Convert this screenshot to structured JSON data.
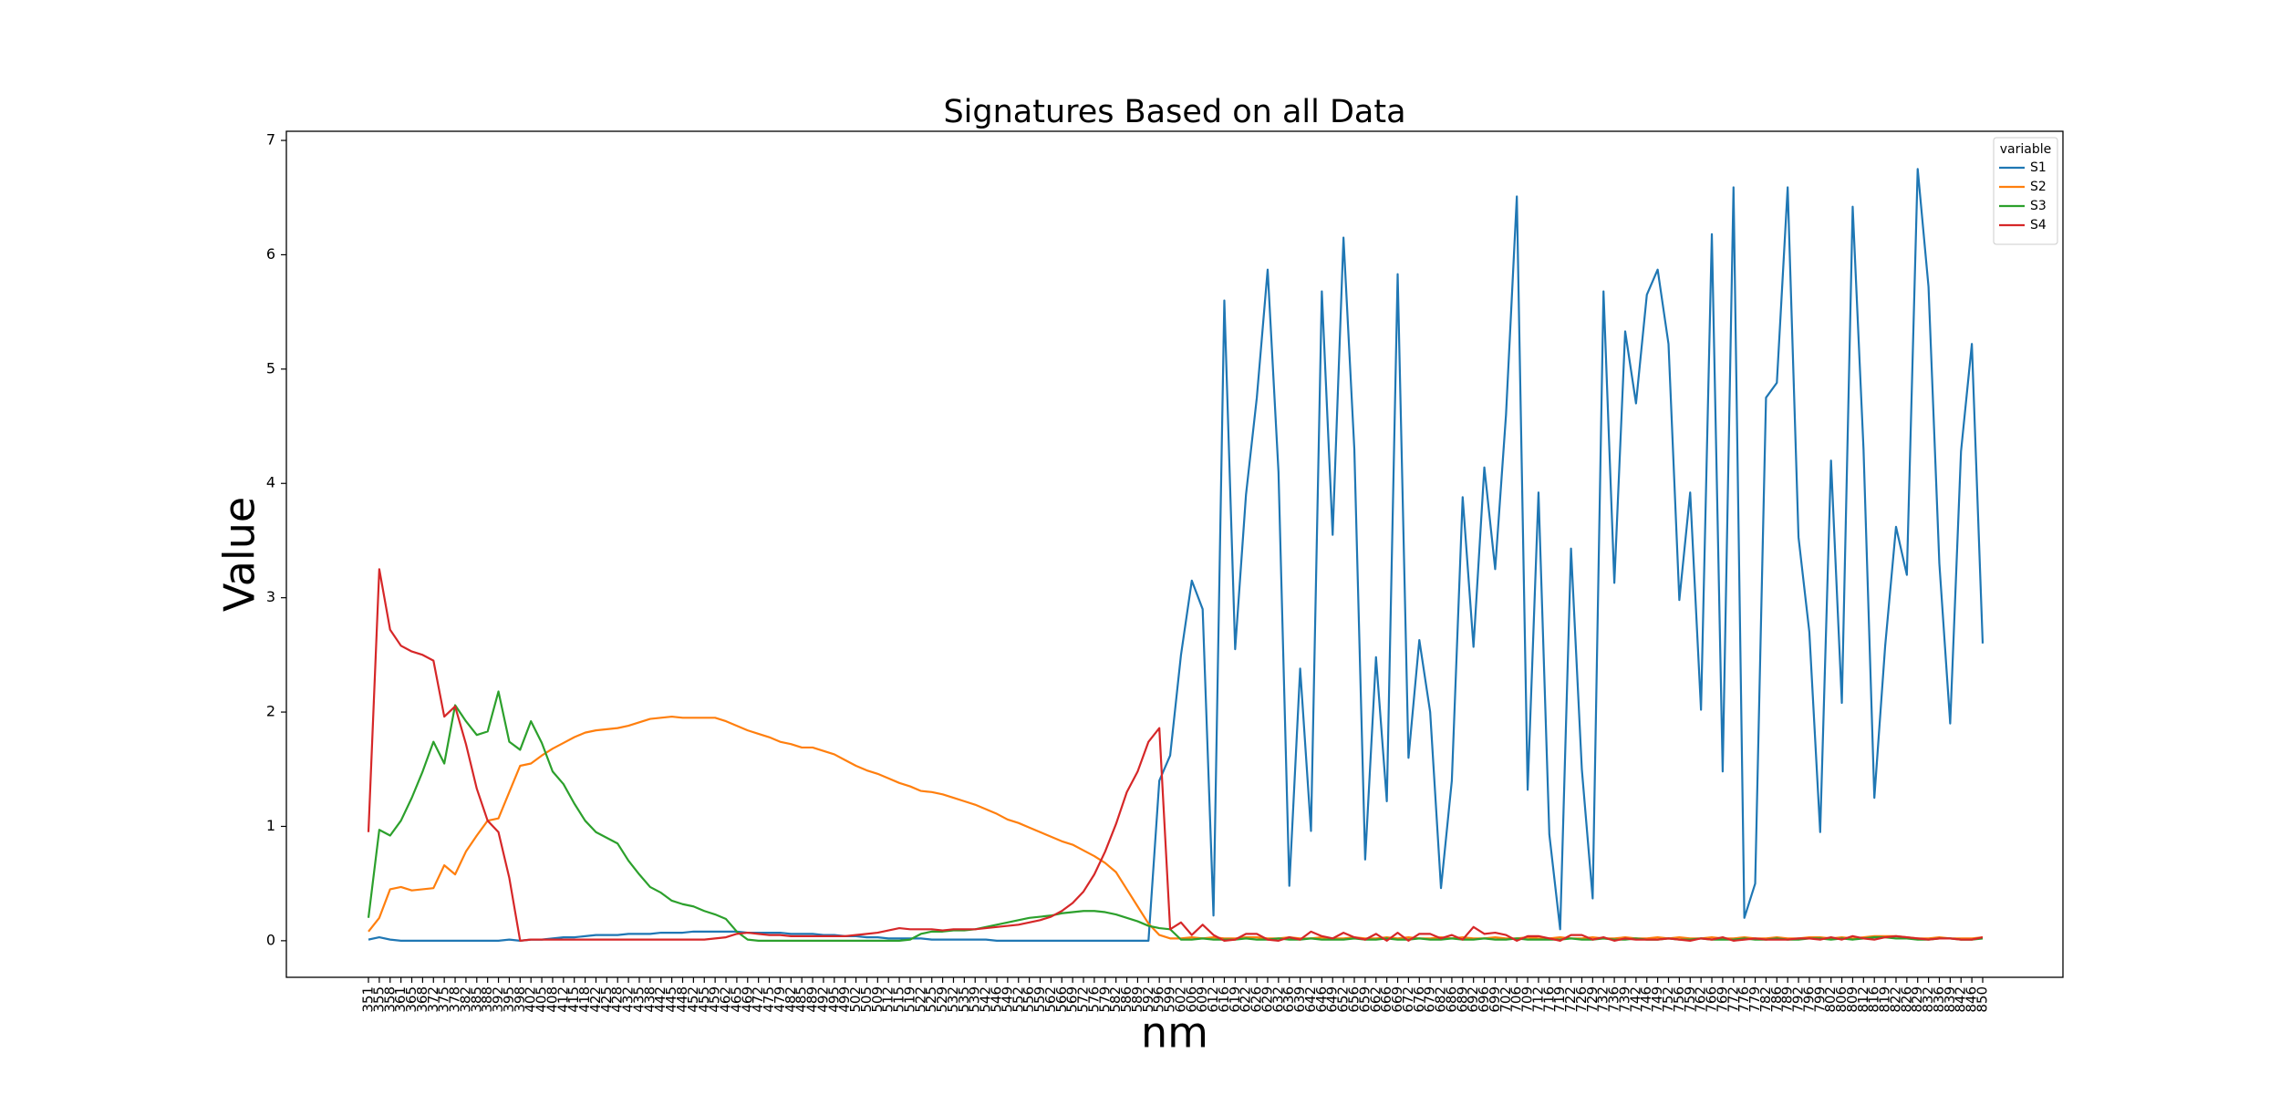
{
  "chart_data": {
    "type": "line",
    "title": "Signatures Based on all Data",
    "x_label": "nm",
    "y_label": "Value",
    "categories": [
      "351",
      "355",
      "358",
      "361",
      "365",
      "368",
      "372",
      "375",
      "378",
      "382",
      "385",
      "388",
      "392",
      "395",
      "398",
      "402",
      "405",
      "408",
      "412",
      "415",
      "418",
      "422",
      "425",
      "428",
      "432",
      "435",
      "438",
      "442",
      "445",
      "448",
      "452",
      "455",
      "459",
      "462",
      "465",
      "469",
      "472",
      "475",
      "479",
      "482",
      "485",
      "489",
      "492",
      "495",
      "499",
      "502",
      "505",
      "509",
      "512",
      "515",
      "519",
      "522",
      "525",
      "529",
      "532",
      "535",
      "539",
      "542",
      "546",
      "549",
      "552",
      "556",
      "559",
      "562",
      "566",
      "569",
      "572",
      "576",
      "579",
      "582",
      "586",
      "589",
      "592",
      "596",
      "599",
      "602",
      "606",
      "609",
      "612",
      "616",
      "619",
      "622",
      "626",
      "629",
      "632",
      "636",
      "639",
      "642",
      "646",
      "649",
      "652",
      "656",
      "659",
      "662",
      "666",
      "669",
      "672",
      "676",
      "679",
      "682",
      "686",
      "689",
      "692",
      "696",
      "699",
      "702",
      "706",
      "709",
      "712",
      "716",
      "719",
      "722",
      "726",
      "729",
      "732",
      "736",
      "739",
      "742",
      "746",
      "749",
      "752",
      "756",
      "759",
      "762",
      "766",
      "769",
      "772",
      "776",
      "779",
      "782",
      "786",
      "789",
      "792",
      "796",
      "799",
      "802",
      "806",
      "809",
      "812",
      "816",
      "819",
      "822",
      "826",
      "829",
      "832",
      "836",
      "839",
      "842",
      "846",
      "850"
    ],
    "series": [
      {
        "name": "S1",
        "color": "#1f77b4",
        "values": [
          0.01,
          0.03,
          0.01,
          0,
          0,
          0,
          0,
          0,
          0,
          0,
          0,
          0,
          0,
          0.01,
          0,
          0.01,
          0.01,
          0.02,
          0.03,
          0.03,
          0.04,
          0.05,
          0.05,
          0.05,
          0.06,
          0.06,
          0.06,
          0.07,
          0.07,
          0.07,
          0.08,
          0.08,
          0.08,
          0.08,
          0.08,
          0.07,
          0.07,
          0.07,
          0.07,
          0.06,
          0.06,
          0.06,
          0.05,
          0.05,
          0.04,
          0.04,
          0.03,
          0.03,
          0.02,
          0.02,
          0.02,
          0.02,
          0.01,
          0.01,
          0.01,
          0.01,
          0.01,
          0.01,
          0,
          0,
          0,
          0,
          0,
          0,
          0,
          0,
          0,
          0,
          0,
          0,
          0,
          0,
          0,
          1.4,
          1.62,
          2.5,
          3.15,
          2.9,
          0.22,
          5.6,
          2.55,
          3.9,
          4.75,
          5.87,
          4.1,
          0.48,
          2.38,
          0.96,
          5.68,
          3.55,
          6.15,
          4.3,
          0.71,
          2.48,
          1.22,
          5.83,
          1.6,
          2.63,
          2.0,
          0.46,
          1.4,
          3.88,
          2.57,
          4.14,
          3.25,
          4.6,
          6.51,
          1.32,
          3.92,
          0.93,
          0.1,
          3.43,
          1.5,
          0.37,
          5.68,
          3.13,
          5.33,
          4.7,
          5.65,
          5.87,
          5.22,
          2.98,
          3.92,
          2.02,
          6.18,
          1.48,
          6.59,
          0.2,
          0.5,
          4.75,
          4.88,
          6.59,
          3.53,
          2.7,
          0.95,
          4.2,
          2.08,
          6.42,
          4.3,
          1.25,
          2.58,
          3.62,
          3.2,
          6.75,
          5.72,
          3.3,
          1.9,
          4.28,
          5.22,
          2.6
        ]
      },
      {
        "name": "S2",
        "color": "#ff7f0e",
        "values": [
          0.08,
          0.2,
          0.45,
          0.47,
          0.44,
          0.45,
          0.46,
          0.66,
          0.58,
          0.78,
          0.92,
          1.05,
          1.07,
          1.3,
          1.53,
          1.55,
          1.62,
          1.68,
          1.73,
          1.78,
          1.82,
          1.84,
          1.85,
          1.86,
          1.88,
          1.91,
          1.94,
          1.95,
          1.96,
          1.95,
          1.95,
          1.95,
          1.95,
          1.92,
          1.88,
          1.84,
          1.81,
          1.78,
          1.74,
          1.72,
          1.69,
          1.69,
          1.66,
          1.63,
          1.58,
          1.53,
          1.49,
          1.46,
          1.42,
          1.38,
          1.35,
          1.31,
          1.3,
          1.28,
          1.25,
          1.22,
          1.19,
          1.15,
          1.11,
          1.06,
          1.03,
          0.99,
          0.95,
          0.91,
          0.87,
          0.84,
          0.79,
          0.74,
          0.68,
          0.6,
          0.45,
          0.3,
          0.15,
          0.05,
          0.02,
          0.02,
          0.03,
          0.02,
          0.03,
          0.02,
          0.02,
          0.03,
          0.03,
          0.02,
          0.02,
          0.03,
          0.02,
          0.02,
          0.03,
          0.02,
          0.02,
          0.03,
          0.02,
          0.02,
          0.03,
          0.02,
          0.03,
          0.02,
          0.02,
          0.03,
          0.02,
          0.03,
          0.02,
          0.02,
          0.03,
          0.02,
          0.02,
          0.03,
          0.02,
          0.02,
          0.03,
          0.02,
          0.02,
          0.03,
          0.02,
          0.02,
          0.03,
          0.02,
          0.02,
          0.03,
          0.02,
          0.03,
          0.02,
          0.02,
          0.03,
          0.02,
          0.02,
          0.03,
          0.02,
          0.02,
          0.03,
          0.02,
          0.02,
          0.03,
          0.03,
          0.02,
          0.03,
          0.02,
          0.03,
          0.04,
          0.04,
          0.04,
          0.03,
          0.02,
          0.02,
          0.03,
          0.02,
          0.02,
          0.02,
          0.03
        ]
      },
      {
        "name": "S3",
        "color": "#2ca02c",
        "values": [
          0.2,
          0.97,
          0.92,
          1.05,
          1.25,
          1.48,
          1.74,
          1.55,
          2.06,
          1.92,
          1.8,
          1.83,
          2.18,
          1.74,
          1.67,
          1.92,
          1.73,
          1.48,
          1.37,
          1.2,
          1.05,
          0.95,
          0.9,
          0.85,
          0.7,
          0.58,
          0.47,
          0.42,
          0.35,
          0.32,
          0.3,
          0.26,
          0.23,
          0.19,
          0.08,
          0.01,
          0,
          0,
          0,
          0,
          0,
          0,
          0,
          0,
          0,
          0,
          0,
          0,
          0,
          0,
          0.01,
          0.06,
          0.08,
          0.08,
          0.09,
          0.09,
          0.1,
          0.12,
          0.14,
          0.16,
          0.18,
          0.2,
          0.21,
          0.22,
          0.24,
          0.25,
          0.26,
          0.26,
          0.25,
          0.23,
          0.2,
          0.17,
          0.13,
          0.11,
          0.1,
          0.01,
          0.01,
          0.02,
          0.01,
          0.01,
          0.01,
          0.02,
          0.01,
          0.01,
          0.02,
          0.01,
          0.01,
          0.02,
          0.01,
          0.01,
          0.01,
          0.02,
          0.01,
          0.01,
          0.02,
          0.01,
          0.01,
          0.02,
          0.01,
          0.01,
          0.02,
          0.01,
          0.01,
          0.02,
          0.01,
          0.01,
          0.02,
          0.01,
          0.01,
          0.01,
          0.01,
          0.02,
          0.01,
          0.01,
          0.02,
          0.01,
          0.01,
          0.02,
          0.01,
          0.01,
          0.02,
          0.01,
          0.01,
          0.02,
          0.01,
          0.01,
          0.01,
          0.02,
          0.01,
          0.01,
          0.02,
          0.01,
          0.01,
          0.02,
          0.02,
          0.01,
          0.02,
          0.01,
          0.02,
          0.03,
          0.03,
          0.02,
          0.02,
          0.01,
          0.01,
          0.02,
          0.02,
          0.01,
          0.01,
          0.02
        ]
      },
      {
        "name": "S4",
        "color": "#d62728",
        "values": [
          0.95,
          3.25,
          2.72,
          2.58,
          2.53,
          2.5,
          2.45,
          1.96,
          2.05,
          1.72,
          1.33,
          1.05,
          0.95,
          0.55,
          0,
          0.01,
          0.01,
          0.01,
          0.01,
          0.01,
          0.01,
          0.01,
          0.01,
          0.01,
          0.01,
          0.01,
          0.01,
          0.01,
          0.01,
          0.01,
          0.01,
          0.01,
          0.02,
          0.03,
          0.06,
          0.07,
          0.06,
          0.05,
          0.05,
          0.04,
          0.04,
          0.04,
          0.04,
          0.04,
          0.04,
          0.05,
          0.06,
          0.07,
          0.09,
          0.11,
          0.1,
          0.1,
          0.1,
          0.09,
          0.1,
          0.1,
          0.1,
          0.11,
          0.12,
          0.13,
          0.14,
          0.16,
          0.18,
          0.21,
          0.26,
          0.33,
          0.43,
          0.58,
          0.78,
          1.02,
          1.3,
          1.48,
          1.74,
          1.86,
          0.1,
          0.16,
          0.05,
          0.14,
          0.05,
          0,
          0.01,
          0.06,
          0.06,
          0.01,
          0,
          0.03,
          0.01,
          0.08,
          0.04,
          0.02,
          0.07,
          0.03,
          0.01,
          0.06,
          0,
          0.07,
          0,
          0.06,
          0.06,
          0.02,
          0.05,
          0.01,
          0.12,
          0.06,
          0.07,
          0.05,
          0,
          0.04,
          0.04,
          0.02,
          0,
          0.05,
          0.05,
          0.01,
          0.03,
          0,
          0.02,
          0.01,
          0.01,
          0.01,
          0.02,
          0.01,
          0,
          0.02,
          0.01,
          0.03,
          0,
          0.01,
          0.02,
          0.01,
          0.01,
          0.01,
          0.02,
          0.02,
          0.01,
          0.03,
          0.01,
          0.04,
          0.02,
          0.01,
          0.03,
          0.04,
          0.03,
          0.02,
          0.01,
          0.02,
          0.02,
          0.01,
          0.01,
          0.03
        ]
      }
    ],
    "ylim": [
      -0.32,
      7.08
    ],
    "yticks": [
      0,
      1,
      2,
      3,
      4,
      5,
      6,
      7
    ],
    "grid": false,
    "legend_title": "variable",
    "legend": "upper right"
  }
}
